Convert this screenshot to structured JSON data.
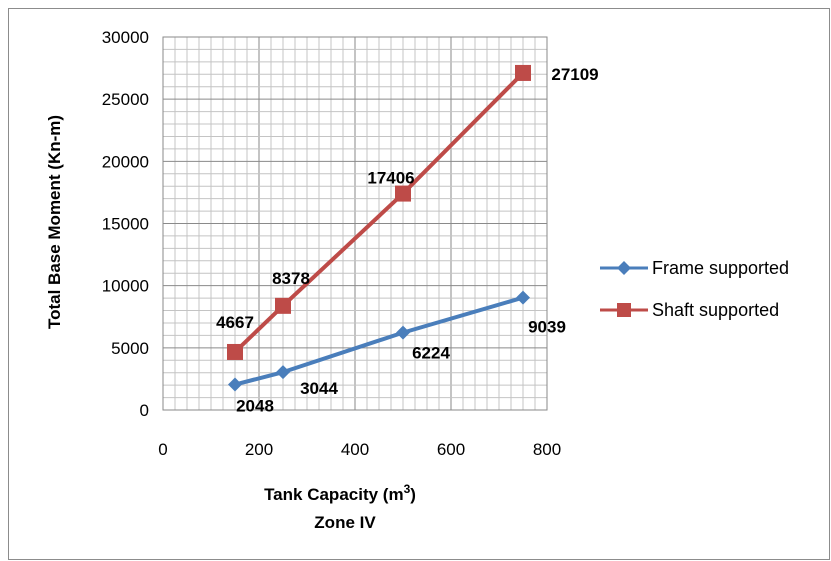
{
  "chart_data": {
    "type": "line",
    "xlabel": "Tank Capacity (m",
    "xlabel_superscript": "3",
    "xlabel_suffix": ")",
    "subtitle": "Zone IV",
    "ylabel": "Total Base Moment (Kn-m)",
    "xlim": [
      0,
      800
    ],
    "ylim": [
      0,
      30000
    ],
    "x_ticks": [
      "0",
      "200",
      "400",
      "600",
      "800"
    ],
    "y_ticks": [
      "0",
      "5000",
      "10000",
      "15000",
      "20000",
      "25000",
      "30000"
    ],
    "grid": true,
    "legend_position": "right",
    "series": [
      {
        "name": "Frame supported",
        "color": "#4a7ebb",
        "marker": "diamond",
        "x": [
          150,
          250,
          500,
          750
        ],
        "values": [
          2048,
          3044,
          6224,
          9039
        ],
        "labels": [
          "2048",
          "3044",
          "6224",
          "9039"
        ]
      },
      {
        "name": "Shaft supported",
        "color": "#be4b48",
        "marker": "square",
        "x": [
          150,
          250,
          500,
          750
        ],
        "values": [
          4667,
          8378,
          17406,
          27109
        ],
        "labels": [
          "4667",
          "8378",
          "17406",
          "27109"
        ]
      }
    ]
  }
}
